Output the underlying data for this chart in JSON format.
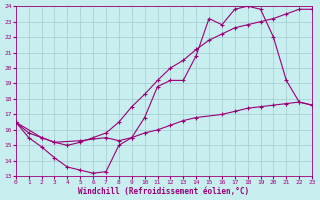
{
  "xlabel": "Windchill (Refroidissement éolien,°C)",
  "bg_color": "#c8eef0",
  "line_color": "#990077",
  "markersize": 2.5,
  "linewidth": 0.8,
  "xlim": [
    0,
    23
  ],
  "ylim": [
    13,
    24
  ],
  "xticks": [
    0,
    1,
    2,
    3,
    4,
    5,
    6,
    7,
    8,
    9,
    10,
    11,
    12,
    13,
    14,
    15,
    16,
    17,
    18,
    19,
    20,
    21,
    22,
    23
  ],
  "yticks": [
    13,
    14,
    15,
    16,
    17,
    18,
    19,
    20,
    21,
    22,
    23,
    24
  ],
  "grid_color": "#a0ccd0",
  "lines": [
    {
      "x": [
        0,
        1,
        2,
        3,
        4,
        5,
        6,
        7,
        8,
        9,
        10,
        11,
        12,
        13,
        14,
        15,
        16,
        17,
        18,
        19,
        20,
        21,
        22,
        23
      ],
      "y": [
        16.5,
        15.5,
        14.9,
        14.2,
        13.6,
        13.4,
        13.2,
        13.3,
        15.0,
        15.5,
        16.8,
        18.8,
        19.2,
        19.2,
        20.8,
        23.2,
        22.8,
        23.8,
        24.0,
        23.8,
        22.0,
        19.2,
        17.8,
        17.6
      ]
    },
    {
      "x": [
        0,
        1,
        2,
        3,
        4,
        5,
        6,
        7,
        8,
        9,
        10,
        11,
        12,
        13,
        14,
        15,
        16,
        17,
        18,
        19,
        20,
        21,
        22,
        23
      ],
      "y": [
        16.5,
        15.8,
        15.5,
        15.2,
        15.0,
        15.2,
        15.5,
        15.8,
        16.5,
        17.5,
        18.3,
        19.2,
        20.0,
        20.5,
        21.2,
        21.8,
        22.2,
        22.6,
        22.8,
        23.0,
        23.2,
        23.5,
        23.8,
        23.8
      ]
    },
    {
      "x": [
        0,
        2,
        3,
        5,
        7,
        8,
        9,
        10,
        11,
        12,
        13,
        14,
        16,
        17,
        18,
        19,
        20,
        21,
        22,
        23
      ],
      "y": [
        16.5,
        15.5,
        15.2,
        15.3,
        15.5,
        15.3,
        15.5,
        15.8,
        16.0,
        16.3,
        16.6,
        16.8,
        17.0,
        17.2,
        17.4,
        17.5,
        17.6,
        17.7,
        17.8,
        17.6
      ]
    }
  ]
}
